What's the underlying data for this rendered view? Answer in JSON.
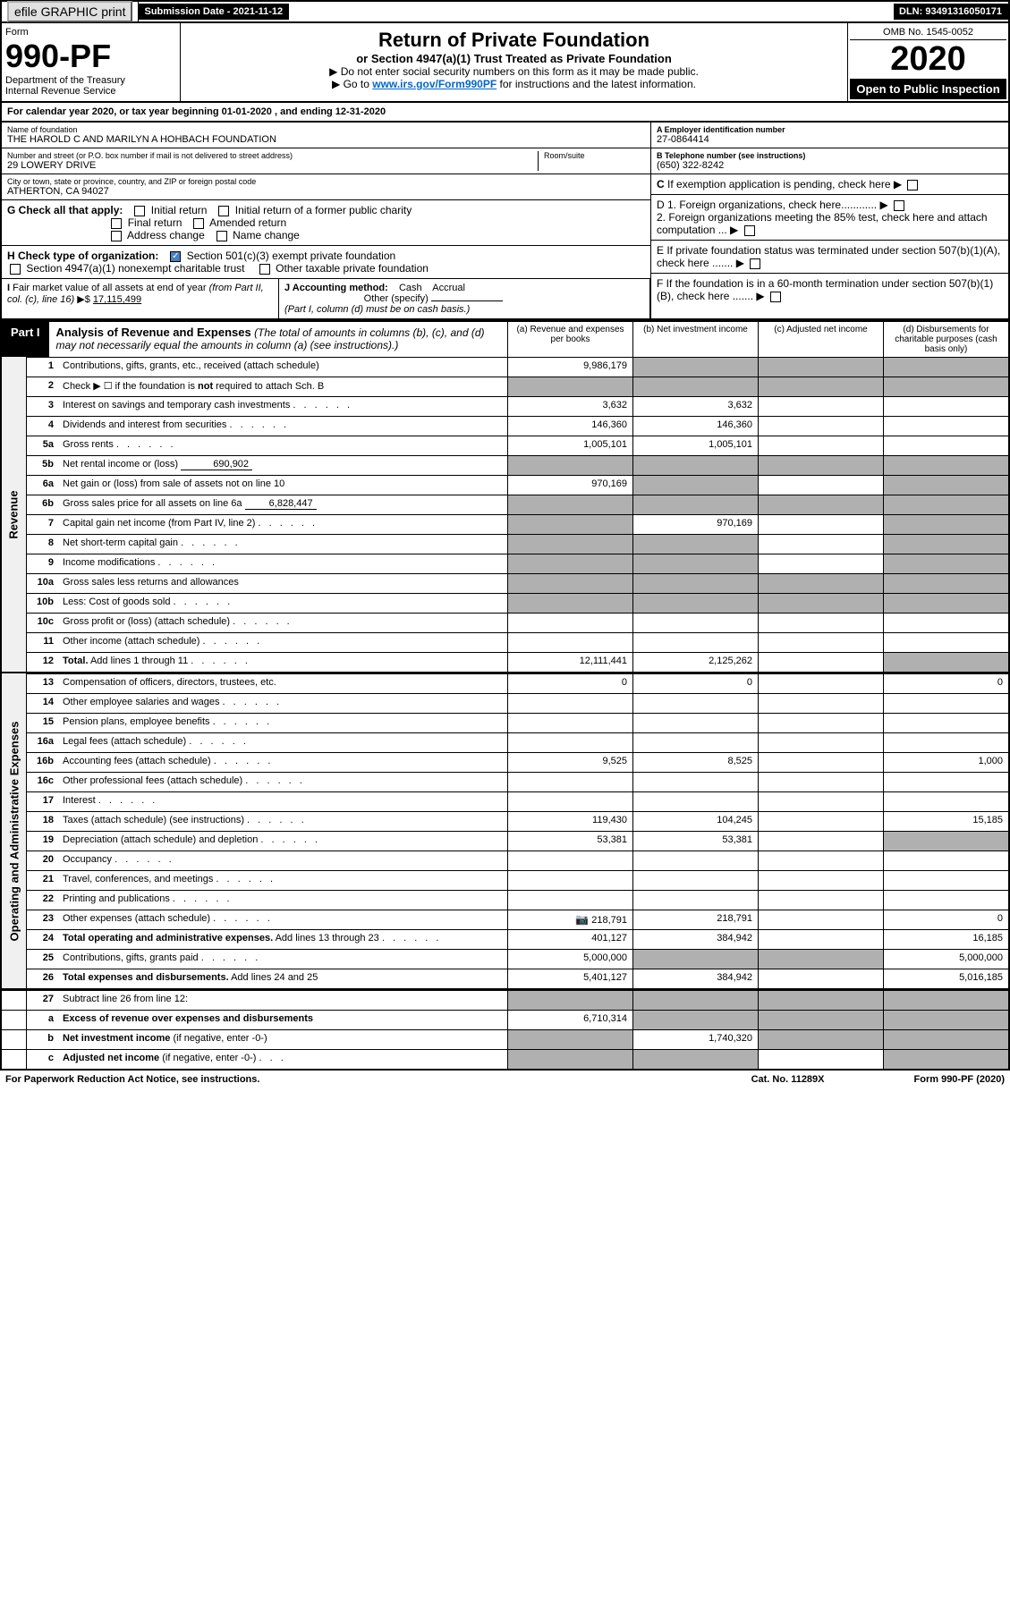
{
  "topbar": {
    "efile": "efile GRAPHIC print",
    "submission": "Submission Date - 2021-11-12",
    "dln": "DLN: 93491316050171"
  },
  "header": {
    "form_label": "Form",
    "form_no": "990-PF",
    "dept1": "Department of the Treasury",
    "dept2": "Internal Revenue Service",
    "title": "Return of Private Foundation",
    "subtitle": "or Section 4947(a)(1) Trust Treated as Private Foundation",
    "instr1": "▶ Do not enter social security numbers on this form as it may be made public.",
    "instr2_pre": "▶ Go to ",
    "instr2_link": "www.irs.gov/Form990PF",
    "instr2_post": " for instructions and the latest information.",
    "omb": "OMB No. 1545-0052",
    "year": "2020",
    "public": "Open to Public Inspection"
  },
  "cal_year": "For calendar year 2020, or tax year beginning 01-01-2020                , and ending 12-31-2020",
  "info": {
    "name_label": "Name of foundation",
    "name": "THE HAROLD C AND MARILYN A HOHBACH FOUNDATION",
    "addr_label": "Number and street (or P.O. box number if mail is not delivered to street address)",
    "addr": "29 LOWERY DRIVE",
    "room_label": "Room/suite",
    "city_label": "City or town, state or province, country, and ZIP or foreign postal code",
    "city": "ATHERTON, CA  94027",
    "ein_label": "A Employer identification number",
    "ein": "27-0864414",
    "phone_label": "B Telephone number (see instructions)",
    "phone": "(650) 322-8242",
    "c_label": "C If exemption application is pending, check here",
    "d1": "D 1. Foreign organizations, check here............",
    "d2": "2. Foreign organizations meeting the 85% test, check here and attach computation ...",
    "e_label": "E  If private foundation status was terminated under section 507(b)(1)(A), check here .......",
    "f_label": "F  If the foundation is in a 60-month termination under section 507(b)(1)(B), check here .......",
    "g_label": "G Check all that apply:",
    "g_opts": [
      "Initial return",
      "Initial return of a former public charity",
      "Final return",
      "Amended return",
      "Address change",
      "Name change"
    ],
    "h_label": "H Check type of organization:",
    "h_opt1": "Section 501(c)(3) exempt private foundation",
    "h_opt2": "Section 4947(a)(1) nonexempt charitable trust",
    "h_opt3": "Other taxable private foundation",
    "i_label": "I Fair market value of all assets at end of year (from Part II, col. (c), line 16) ▶$ ",
    "i_val": "17,115,499",
    "j_label": "J Accounting method:",
    "j_cash": "Cash",
    "j_accrual": "Accrual",
    "j_other": "Other (specify)",
    "j_note": "(Part I, column (d) must be on cash basis.)"
  },
  "part1": {
    "tab": "Part I",
    "title": "Analysis of Revenue and Expenses",
    "note": "(The total of amounts in columns (b), (c), and (d) may not necessarily equal the amounts in column (a) (see instructions).)",
    "col_a": "(a)   Revenue and expenses per books",
    "col_b": "(b)   Net investment income",
    "col_c": "(c)   Adjusted net income",
    "col_d": "(d)  Disbursements for charitable purposes (cash basis only)"
  },
  "side": {
    "revenue": "Revenue",
    "expenses": "Operating and Administrative Expenses"
  },
  "lines": {
    "1": {
      "desc": "Contributions, gifts, grants, etc., received (attach schedule)",
      "a": "9,986,179"
    },
    "2": {
      "desc": "Check ▶ ☐ if the foundation is <b>not</b> required to attach Sch. B"
    },
    "3": {
      "desc": "Interest on savings and temporary cash investments",
      "a": "3,632",
      "b": "3,632"
    },
    "4": {
      "desc": "Dividends and interest from securities",
      "a": "146,360",
      "b": "146,360"
    },
    "5a": {
      "desc": "Gross rents",
      "a": "1,005,101",
      "b": "1,005,101"
    },
    "5b": {
      "desc": "Net rental income or (loss)",
      "box": "690,902"
    },
    "6a": {
      "desc": "Net gain or (loss) from sale of assets not on line 10",
      "a": "970,169"
    },
    "6b": {
      "desc": "Gross sales price for all assets on line 6a",
      "box": "6,828,447"
    },
    "7": {
      "desc": "Capital gain net income (from Part IV, line 2)",
      "b": "970,169"
    },
    "8": {
      "desc": "Net short-term capital gain"
    },
    "9": {
      "desc": "Income modifications"
    },
    "10a": {
      "desc": "Gross sales less returns and allowances"
    },
    "10b": {
      "desc": "Less: Cost of goods sold"
    },
    "10c": {
      "desc": "Gross profit or (loss) (attach schedule)"
    },
    "11": {
      "desc": "Other income (attach schedule)"
    },
    "12": {
      "desc": "<b>Total.</b> Add lines 1 through 11",
      "a": "12,111,441",
      "b": "2,125,262"
    },
    "13": {
      "desc": "Compensation of officers, directors, trustees, etc.",
      "a": "0",
      "b": "0",
      "d": "0"
    },
    "14": {
      "desc": "Other employee salaries and wages"
    },
    "15": {
      "desc": "Pension plans, employee benefits"
    },
    "16a": {
      "desc": "Legal fees (attach schedule)"
    },
    "16b": {
      "desc": "Accounting fees (attach schedule)",
      "a": "9,525",
      "b": "8,525",
      "d": "1,000"
    },
    "16c": {
      "desc": "Other professional fees (attach schedule)"
    },
    "17": {
      "desc": "Interest"
    },
    "18": {
      "desc": "Taxes (attach schedule) (see instructions)",
      "a": "119,430",
      "b": "104,245",
      "d": "15,185"
    },
    "19": {
      "desc": "Depreciation (attach schedule) and depletion",
      "a": "53,381",
      "b": "53,381"
    },
    "20": {
      "desc": "Occupancy"
    },
    "21": {
      "desc": "Travel, conferences, and meetings"
    },
    "22": {
      "desc": "Printing and publications"
    },
    "23": {
      "desc": "Other expenses (attach schedule)",
      "a": "218,791",
      "b": "218,791",
      "d": "0",
      "camera": true
    },
    "24": {
      "desc": "<b>Total operating and administrative expenses.</b> Add lines 13 through 23",
      "a": "401,127",
      "b": "384,942",
      "d": "16,185"
    },
    "25": {
      "desc": "Contributions, gifts, grants paid",
      "a": "5,000,000",
      "d": "5,000,000"
    },
    "26": {
      "desc": "<b>Total expenses and disbursements.</b> Add lines 24 and 25",
      "a": "5,401,127",
      "b": "384,942",
      "d": "5,016,185"
    },
    "27": {
      "desc": "Subtract line 26 from line 12:"
    },
    "27a": {
      "desc": "<b>Excess of revenue over expenses and disbursements</b>",
      "a": "6,710,314"
    },
    "27b": {
      "desc": "<b>Net investment income</b> (if negative, enter -0-)",
      "b": "1,740,320"
    },
    "27c": {
      "desc": "<b>Adjusted net income</b> (if negative, enter -0-)"
    }
  },
  "footer": {
    "left": "For Paperwork Reduction Act Notice, see instructions.",
    "mid": "Cat. No. 11289X",
    "right": "Form 990-PF (2020)"
  }
}
